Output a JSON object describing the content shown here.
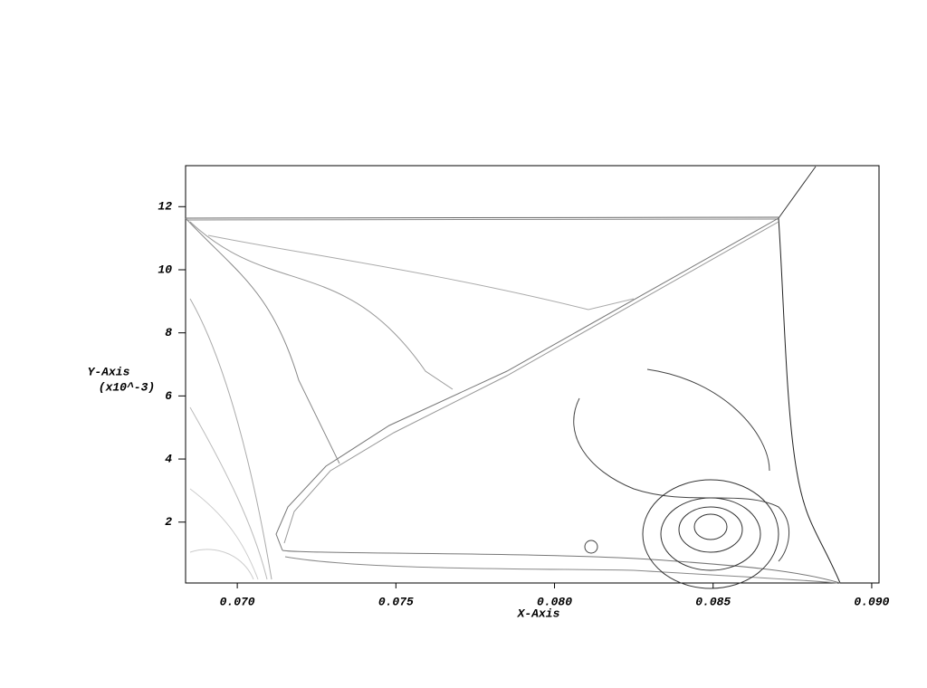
{
  "chart_data": {
    "type": "contour",
    "x_label": "X-Axis",
    "y_label": "Y-Axis",
    "y_label_scale": "(x10^-3)",
    "xlim": [
      0.06837,
      0.09023
    ],
    "ylim": [
      0.07,
      13.3
    ],
    "xticks": [
      {
        "value": 0.07,
        "label": "0.070"
      },
      {
        "value": 0.075,
        "label": "0.075"
      },
      {
        "value": 0.08,
        "label": "0.080"
      },
      {
        "value": 0.085,
        "label": "0.085"
      },
      {
        "value": 0.09,
        "label": "0.090"
      }
    ],
    "yticks": [
      2,
      4,
      6,
      8,
      10,
      12
    ],
    "color": "#808080"
  }
}
